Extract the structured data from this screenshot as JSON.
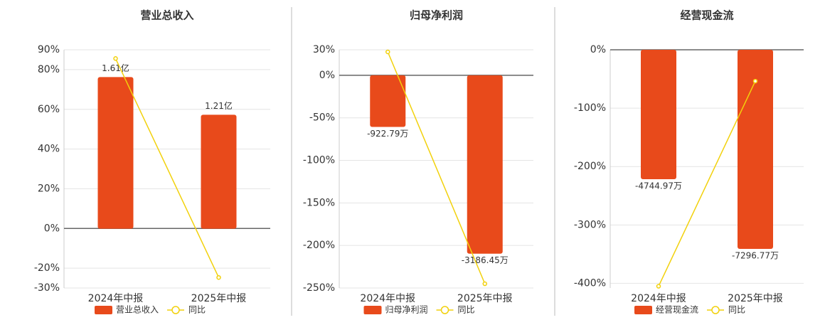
{
  "chart_data": [
    {
      "type": "bar",
      "title": "营业总收入",
      "categories": [
        "2024年中报",
        "2025年中报"
      ],
      "ylim": [
        -30,
        90
      ],
      "y2lim": [
        -0.63,
        1.9
      ],
      "yticks": [
        {
          "value": -30,
          "label": "-30%"
        },
        {
          "value": -20,
          "label": "-20%"
        },
        {
          "value": 0,
          "label": "0%"
        },
        {
          "value": 20,
          "label": "20%"
        },
        {
          "value": 40,
          "label": "40%"
        },
        {
          "value": 60,
          "label": "60%"
        },
        {
          "value": 80,
          "label": "80%"
        },
        {
          "value": 90,
          "label": "90%"
        }
      ],
      "series": [
        {
          "name": "营业总收入",
          "type": "bar",
          "axis": "y2",
          "color": "#e84a1b",
          "values": [
            1.61,
            1.21
          ],
          "value_labels": [
            "1.61亿",
            "1.21亿"
          ]
        },
        {
          "name": "同比",
          "type": "line",
          "color": "#f2d10c",
          "values": [
            85.6,
            -24.7
          ]
        }
      ]
    },
    {
      "type": "bar",
      "title": "归母净利润",
      "categories": [
        "2024年中报",
        "2025年中报"
      ],
      "ylim": [
        -250,
        30
      ],
      "y2lim": [
        -3800,
        456
      ],
      "yticks": [
        {
          "value": -250,
          "label": "-250%"
        },
        {
          "value": -200,
          "label": "-200%"
        },
        {
          "value": -150,
          "label": "-150%"
        },
        {
          "value": -100,
          "label": "-100%"
        },
        {
          "value": -50,
          "label": "-50%"
        },
        {
          "value": 0,
          "label": "0%"
        },
        {
          "value": 30,
          "label": "30%"
        }
      ],
      "series": [
        {
          "name": "归母净利润",
          "type": "bar",
          "axis": "y2",
          "color": "#e84a1b",
          "values": [
            -922.79,
            -3186.45
          ],
          "value_labels": [
            "-922.79万",
            "-3186.45万"
          ]
        },
        {
          "name": "同比",
          "type": "line",
          "color": "#f2d10c",
          "values": [
            27.5,
            -245
          ]
        }
      ]
    },
    {
      "type": "bar",
      "title": "经营现金流",
      "categories": [
        "2024年中报",
        "2025年中报"
      ],
      "ylim": [
        -408,
        0
      ],
      "y2lim": [
        -8731,
        0
      ],
      "yticks": [
        {
          "value": -400,
          "label": "-400%"
        },
        {
          "value": -300,
          "label": "-300%"
        },
        {
          "value": -200,
          "label": "-200%"
        },
        {
          "value": -100,
          "label": "-100%"
        },
        {
          "value": 0,
          "label": "0%"
        }
      ],
      "series": [
        {
          "name": "经营现金流",
          "type": "bar",
          "axis": "y2",
          "color": "#e84a1b",
          "values": [
            -4744.97,
            -7296.77
          ],
          "value_labels": [
            "-4744.97万",
            "-7296.77万"
          ]
        },
        {
          "name": "同比",
          "type": "line",
          "color": "#f2d10c",
          "values": [
            -405,
            -53.7
          ]
        }
      ]
    }
  ]
}
